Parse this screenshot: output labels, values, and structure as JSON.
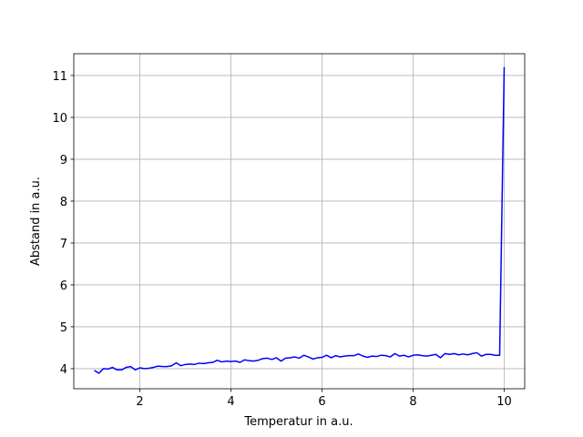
{
  "chart_data": {
    "type": "line",
    "x_label": "Temperatur in a.u.",
    "y_label": "Abstand in a.u.",
    "x": [
      1.0,
      1.1,
      1.2,
      1.3,
      1.4,
      1.5,
      1.6,
      1.7,
      1.8,
      1.9,
      2.0,
      2.1,
      2.2,
      2.3,
      2.4,
      2.5,
      2.6,
      2.7,
      2.8,
      2.9,
      3.0,
      3.1,
      3.2,
      3.3,
      3.4,
      3.5,
      3.6,
      3.7,
      3.8,
      3.9,
      4.0,
      4.1,
      4.2,
      4.3,
      4.4,
      4.5,
      4.6,
      4.7,
      4.8,
      4.9,
      5.0,
      5.1,
      5.2,
      5.3,
      5.4,
      5.5,
      5.6,
      5.7,
      5.8,
      5.9,
      6.0,
      6.1,
      6.2,
      6.3,
      6.4,
      6.5,
      6.6,
      6.7,
      6.8,
      6.9,
      7.0,
      7.1,
      7.2,
      7.3,
      7.4,
      7.5,
      7.6,
      7.7,
      7.8,
      7.9,
      8.0,
      8.1,
      8.2,
      8.3,
      8.4,
      8.5,
      8.6,
      8.7,
      8.8,
      8.9,
      9.0,
      9.1,
      9.2,
      9.3,
      9.4,
      9.5,
      9.6,
      9.7,
      9.8,
      9.9,
      10.0
    ],
    "values": [
      3.96,
      3.89,
      4.0,
      3.99,
      4.03,
      3.97,
      3.97,
      4.03,
      4.05,
      3.97,
      4.02,
      4.0,
      4.01,
      4.03,
      4.06,
      4.05,
      4.05,
      4.07,
      4.14,
      4.07,
      4.1,
      4.11,
      4.1,
      4.13,
      4.12,
      4.14,
      4.15,
      4.2,
      4.16,
      4.18,
      4.17,
      4.18,
      4.15,
      4.21,
      4.19,
      4.18,
      4.2,
      4.24,
      4.25,
      4.22,
      4.26,
      4.18,
      4.25,
      4.26,
      4.28,
      4.25,
      4.32,
      4.28,
      4.23,
      4.26,
      4.27,
      4.32,
      4.26,
      4.31,
      4.28,
      4.3,
      4.31,
      4.31,
      4.35,
      4.3,
      4.27,
      4.3,
      4.29,
      4.32,
      4.31,
      4.28,
      4.36,
      4.3,
      4.32,
      4.28,
      4.32,
      4.33,
      4.31,
      4.3,
      4.32,
      4.34,
      4.26,
      4.36,
      4.34,
      4.36,
      4.33,
      4.35,
      4.33,
      4.36,
      4.38,
      4.3,
      4.34,
      4.34,
      4.32,
      4.32,
      11.2
    ],
    "color": "#0000ff",
    "xlim": [
      0.55,
      10.45
    ],
    "ylim": [
      3.52,
      11.52
    ],
    "xticks": [
      2,
      4,
      6,
      8,
      10
    ],
    "yticks": [
      4,
      5,
      6,
      7,
      8,
      9,
      10,
      11
    ],
    "grid": true
  }
}
